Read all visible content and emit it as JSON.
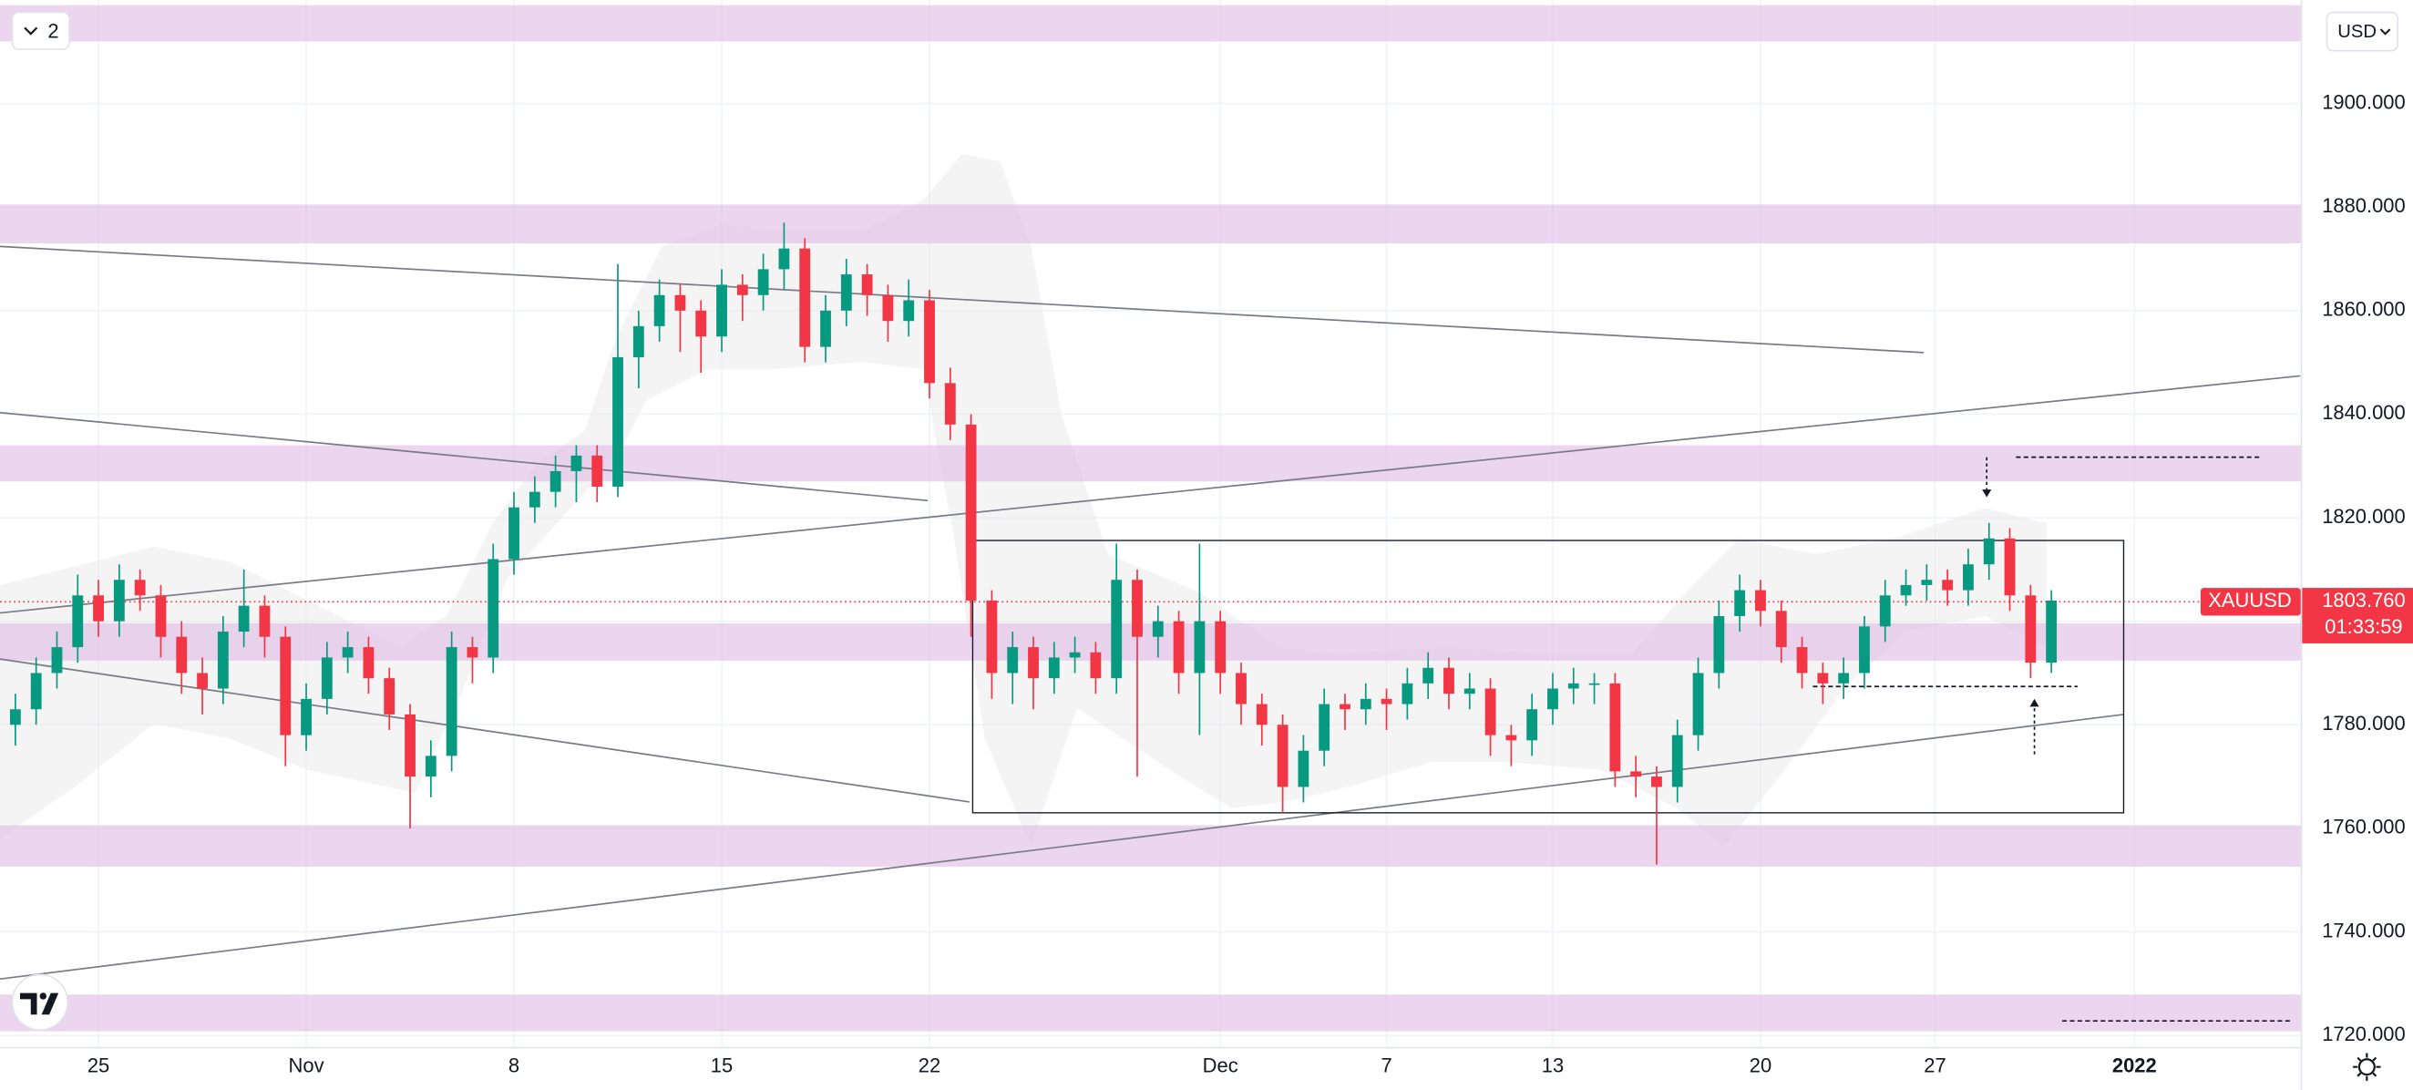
{
  "chart_data": {
    "type": "candlestick",
    "symbol": "XAUUSD",
    "currency": "USD",
    "layer_count": "2",
    "last_price": {
      "value": 1803.76,
      "label": "1803.760"
    },
    "countdown": "01:33:59",
    "up_color": "#089981",
    "down_color": "#f23645",
    "zone_color": "#e1bee7",
    "line_color": "#787b86",
    "price_line_color": "#f23645",
    "grid": true,
    "xlim": [
      -2.37,
      53
    ],
    "ylim": [
      1716,
      1920
    ],
    "xticks": [
      {
        "value": 0,
        "label": "25"
      },
      {
        "value": 5,
        "label": "Nov"
      },
      {
        "value": 10,
        "label": "8"
      },
      {
        "value": 15,
        "label": "15"
      },
      {
        "value": 20,
        "label": "22"
      },
      {
        "value": 27,
        "label": "Dec"
      },
      {
        "value": 31,
        "label": "7"
      },
      {
        "value": 35,
        "label": "13"
      },
      {
        "value": 40,
        "label": "20"
      },
      {
        "value": 44.2,
        "label": "27"
      },
      {
        "value": 49,
        "label": "2022"
      }
    ],
    "yticks": [
      {
        "value": 1720,
        "label": "1720.000"
      },
      {
        "value": 1740,
        "label": "1740.000"
      },
      {
        "value": 1760,
        "label": "1760.000"
      },
      {
        "value": 1780,
        "label": "1780.000"
      },
      {
        "value": 1800,
        "label": "1800.000"
      },
      {
        "value": 1820,
        "label": "1820.000"
      },
      {
        "value": 1840,
        "label": "1840.000"
      },
      {
        "value": 1860,
        "label": "1860.000"
      },
      {
        "value": 1880,
        "label": "1880.000"
      },
      {
        "value": 1900,
        "label": "1900.000"
      }
    ],
    "x": [
      -2,
      -1.5,
      -1,
      -0.5,
      0,
      0.5,
      1,
      1.5,
      2,
      2.5,
      3,
      3.5,
      4,
      4.5,
      5,
      5.5,
      6,
      6.5,
      7,
      7.5,
      8,
      8.5,
      9,
      9.5,
      10,
      10.5,
      11,
      11.5,
      12,
      12.5,
      13,
      13.5,
      14,
      14.5,
      15,
      15.5,
      16,
      16.5,
      17,
      17.5,
      18,
      18.5,
      19,
      19.5,
      20,
      20.5,
      21,
      21.5,
      22,
      22.5,
      23,
      23.5,
      24,
      24.5,
      25,
      25.5,
      26,
      26.5,
      27,
      27.5,
      28,
      28.5,
      29,
      29.5,
      30,
      30.5,
      31,
      31.5,
      32,
      32.5,
      33,
      33.5,
      34,
      34.5,
      35,
      35.5,
      36,
      36.5,
      37,
      37.5,
      38,
      38.5,
      39,
      39.5,
      40,
      40.5,
      41,
      41.5,
      42,
      42.5,
      43,
      43.5,
      44,
      44.5,
      45,
      45.5,
      46,
      46.5,
      47
    ],
    "ohlc": [
      [
        1780,
        1786,
        1776,
        1783
      ],
      [
        1783,
        1793,
        1780,
        1790
      ],
      [
        1790,
        1798,
        1787,
        1795
      ],
      [
        1795,
        1809,
        1792,
        1805
      ],
      [
        1805,
        1808,
        1797,
        1800
      ],
      [
        1800,
        1811,
        1797,
        1808
      ],
      [
        1808,
        1810,
        1802,
        1805
      ],
      [
        1805,
        1807,
        1793,
        1797
      ],
      [
        1797,
        1800,
        1786,
        1790
      ],
      [
        1790,
        1793,
        1782,
        1787
      ],
      [
        1787,
        1801,
        1784,
        1798
      ],
      [
        1798,
        1810,
        1795,
        1803
      ],
      [
        1803,
        1805,
        1793,
        1797
      ],
      [
        1797,
        1799,
        1772,
        1778
      ],
      [
        1778,
        1788,
        1775,
        1785
      ],
      [
        1785,
        1796,
        1782,
        1793
      ],
      [
        1793,
        1798,
        1790,
        1795
      ],
      [
        1795,
        1797,
        1786,
        1789
      ],
      [
        1789,
        1791,
        1779,
        1782
      ],
      [
        1782,
        1784,
        1760,
        1770
      ],
      [
        1770,
        1777,
        1766,
        1774
      ],
      [
        1774,
        1798,
        1771,
        1795
      ],
      [
        1795,
        1797,
        1788,
        1793
      ],
      [
        1793,
        1815,
        1790,
        1812
      ],
      [
        1812,
        1825,
        1809,
        1822
      ],
      [
        1822,
        1828,
        1819,
        1825
      ],
      [
        1825,
        1832,
        1822,
        1829
      ],
      [
        1829,
        1834,
        1823,
        1832
      ],
      [
        1832,
        1834,
        1823,
        1826
      ],
      [
        1826,
        1869,
        1824,
        1851
      ],
      [
        1851,
        1860,
        1845,
        1857
      ],
      [
        1857,
        1866,
        1854,
        1863
      ],
      [
        1863,
        1865,
        1852,
        1860
      ],
      [
        1860,
        1862,
        1848,
        1855
      ],
      [
        1855,
        1868,
        1852,
        1865
      ],
      [
        1865,
        1867,
        1858,
        1863
      ],
      [
        1863,
        1871,
        1860,
        1868
      ],
      [
        1868,
        1877,
        1864,
        1872
      ],
      [
        1872,
        1874,
        1850,
        1853
      ],
      [
        1853,
        1863,
        1850,
        1860
      ],
      [
        1860,
        1870,
        1857,
        1867
      ],
      [
        1867,
        1869,
        1859,
        1863
      ],
      [
        1863,
        1865,
        1854,
        1858
      ],
      [
        1858,
        1866,
        1855,
        1862
      ],
      [
        1862,
        1864,
        1843,
        1846
      ],
      [
        1846,
        1849,
        1835,
        1838
      ],
      [
        1838,
        1840,
        1797,
        1804
      ],
      [
        1804,
        1806,
        1785,
        1790
      ],
      [
        1790,
        1798,
        1784,
        1795
      ],
      [
        1795,
        1797,
        1783,
        1789
      ],
      [
        1789,
        1796,
        1786,
        1793
      ],
      [
        1793,
        1797,
        1790,
        1794
      ],
      [
        1794,
        1796,
        1786,
        1789
      ],
      [
        1789,
        1815,
        1786,
        1808
      ],
      [
        1808,
        1810,
        1770,
        1797
      ],
      [
        1797,
        1803,
        1793,
        1800
      ],
      [
        1800,
        1802,
        1786,
        1790
      ],
      [
        1790,
        1815,
        1778,
        1800
      ],
      [
        1800,
        1802,
        1786,
        1790
      ],
      [
        1790,
        1792,
        1780,
        1784
      ],
      [
        1784,
        1786,
        1776,
        1780
      ],
      [
        1780,
        1782,
        1763,
        1768
      ],
      [
        1768,
        1778,
        1765,
        1775
      ],
      [
        1775,
        1787,
        1772,
        1784
      ],
      [
        1784,
        1786,
        1779,
        1783
      ],
      [
        1783,
        1788,
        1780,
        1785
      ],
      [
        1785,
        1787,
        1779,
        1784
      ],
      [
        1784,
        1791,
        1781,
        1788
      ],
      [
        1788,
        1794,
        1785,
        1791
      ],
      [
        1791,
        1793,
        1783,
        1786
      ],
      [
        1786,
        1790,
        1783,
        1787
      ],
      [
        1787,
        1789,
        1774,
        1778
      ],
      [
        1778,
        1780,
        1772,
        1777
      ],
      [
        1777,
        1786,
        1774,
        1783
      ],
      [
        1783,
        1790,
        1780,
        1787
      ],
      [
        1787,
        1791,
        1784,
        1788
      ],
      [
        1788,
        1790,
        1784,
        1788
      ],
      [
        1788,
        1790,
        1768,
        1771
      ],
      [
        1771,
        1774,
        1766,
        1770
      ],
      [
        1770,
        1772,
        1753,
        1768
      ],
      [
        1768,
        1781,
        1765,
        1778
      ],
      [
        1778,
        1793,
        1775,
        1790
      ],
      [
        1790,
        1804,
        1787,
        1801
      ],
      [
        1801,
        1809,
        1798,
        1806
      ],
      [
        1806,
        1808,
        1799,
        1802
      ],
      [
        1802,
        1804,
        1792,
        1795
      ],
      [
        1795,
        1797,
        1787,
        1790
      ],
      [
        1790,
        1792,
        1784,
        1788
      ],
      [
        1788,
        1793,
        1785,
        1790
      ],
      [
        1790,
        1801,
        1787,
        1799
      ],
      [
        1799,
        1808,
        1796,
        1805
      ],
      [
        1805,
        1810,
        1803,
        1807
      ],
      [
        1807,
        1811,
        1804,
        1808
      ],
      [
        1808,
        1810,
        1803,
        1806
      ],
      [
        1806,
        1814,
        1803,
        1811
      ],
      [
        1811,
        1819,
        1808,
        1816
      ],
      [
        1816,
        1818,
        1802,
        1805
      ],
      [
        1805,
        1807,
        1789,
        1792
      ],
      [
        1792,
        1806,
        1790,
        1804
      ]
    ],
    "zones": [
      [
        1912,
        1919
      ],
      [
        1873,
        1880.5
      ],
      [
        1827,
        1834
      ],
      [
        1792.4,
        1799.6
      ],
      [
        1752.6,
        1760.6
      ],
      [
        1720.8,
        1727.9
      ]
    ],
    "lines": [
      {
        "x": [
          -2.37,
          43.93
        ],
        "y": [
          1872.4,
          1851.9
        ]
      },
      {
        "x": [
          -2.37,
          19.96
        ],
        "y": [
          1840.3,
          1823.3
        ]
      },
      {
        "x": [
          -2.37,
          20.96
        ],
        "y": [
          1792.7,
          1765.1
        ]
      },
      {
        "x": [
          -2.37,
          48.74
        ],
        "y": [
          1730.9,
          1782
        ]
      },
      {
        "x": [
          -2.37,
          52.99
        ],
        "y": [
          1801.6,
          1847.4
        ]
      }
    ],
    "dashed_lines": [
      {
        "x": [
          46.15,
          52.07
        ],
        "y": [
          1831.7,
          1831.7
        ]
      },
      {
        "x": [
          41.26,
          47.63
        ],
        "y": [
          1787.4,
          1787.4
        ]
      },
      {
        "x": [
          47.26,
          52.81
        ],
        "y": [
          1722.8,
          1722.8
        ]
      }
    ],
    "box": {
      "x": [
        21.04,
        48.74
      ],
      "y": [
        1763,
        1815.6
      ]
    }
  }
}
